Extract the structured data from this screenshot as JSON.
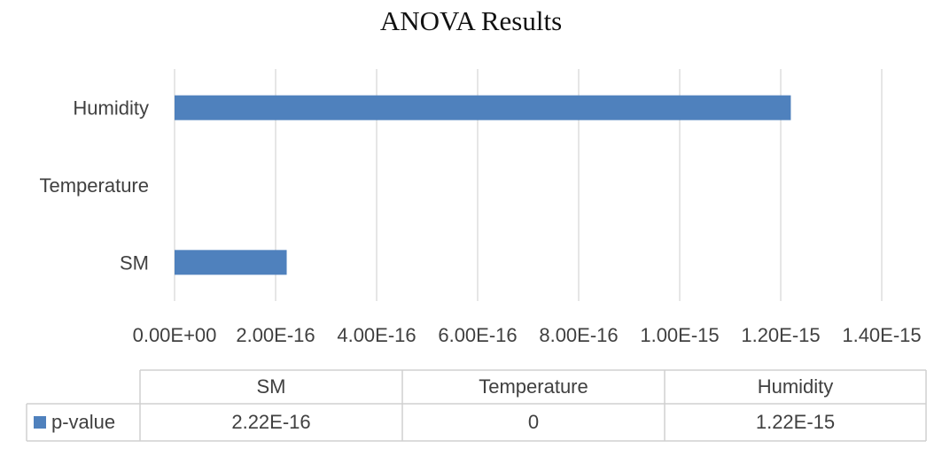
{
  "chart_data": {
    "type": "bar",
    "orientation": "horizontal",
    "title": "ANOVA Results",
    "categories": [
      "SM",
      "Temperature",
      "Humidity"
    ],
    "series": [
      {
        "name": "p-value",
        "values": [
          2.22e-16,
          0,
          1.22e-15
        ],
        "color": "#4f81bd"
      }
    ],
    "xlim": [
      0,
      1.4e-15
    ],
    "x_ticks": [
      "0.00E+00",
      "2.00E-16",
      "4.00E-16",
      "6.00E-16",
      "8.00E-16",
      "1.00E-15",
      "1.20E-15",
      "1.40E-15"
    ],
    "grid": true,
    "legend": "data-table",
    "data_table": {
      "headers": [
        "SM",
        "Temperature",
        "Humidity"
      ],
      "rows": [
        {
          "label": "p-value",
          "cells": [
            "2.22E-16",
            "0",
            "1.22E-15"
          ]
        }
      ]
    }
  }
}
